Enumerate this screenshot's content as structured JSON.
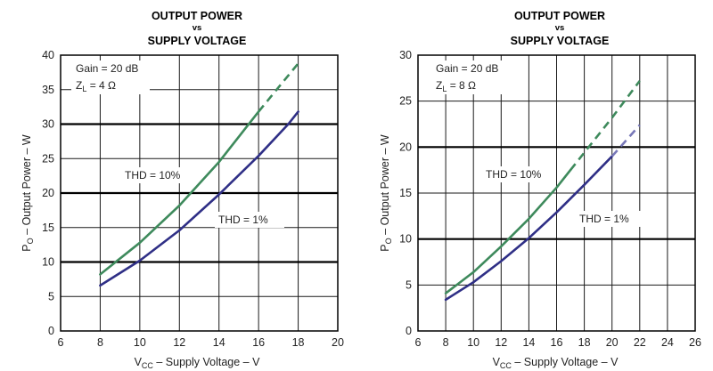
{
  "chart_data": [
    {
      "type": "line",
      "title": "OUTPUT POWER",
      "title_vs": "vs",
      "subtitle": "SUPPLY VOLTAGE",
      "xlabel_prefix": "V",
      "xlabel_sub": "CC",
      "xlabel_rest": " – Supply Voltage – V",
      "ylabel_prefix": "P",
      "ylabel_sub": "O",
      "ylabel_rest": " – Output Power – W",
      "xlim": [
        6,
        20
      ],
      "ylim": [
        0,
        40
      ],
      "x_ticks": [
        6,
        8,
        10,
        12,
        14,
        16,
        18,
        20
      ],
      "y_ticks": [
        0,
        5,
        10,
        15,
        20,
        25,
        30,
        35,
        40
      ],
      "grid": true,
      "annotation_gain": "Gain = 20 dB",
      "annotation_load_prefix": "Z",
      "annotation_load_sub": "L",
      "annotation_load_rest": " = 4 Ω",
      "series": [
        {
          "name": "THD = 10%",
          "color": "#3e8a5c",
          "dashed_from": 16,
          "points": [
            [
              8,
              8.2
            ],
            [
              10,
              12.8
            ],
            [
              12,
              18.2
            ],
            [
              14,
              24.5
            ],
            [
              16,
              31.8
            ],
            [
              18,
              38.8
            ]
          ]
        },
        {
          "name": "THD = 1%",
          "color": "#2f2f86",
          "dashed_from": 18,
          "dashed_color": "#7878b8",
          "points": [
            [
              8,
              6.6
            ],
            [
              10,
              10.2
            ],
            [
              12,
              14.6
            ],
            [
              14,
              19.8
            ],
            [
              16,
              25.4
            ],
            [
              17.5,
              30.0
            ],
            [
              18,
              31.8
            ]
          ]
        }
      ]
    },
    {
      "type": "line",
      "title": "OUTPUT POWER",
      "title_vs": "vs",
      "subtitle": "SUPPLY VOLTAGE",
      "xlabel_prefix": "V",
      "xlabel_sub": "CC",
      "xlabel_rest": " – Supply Voltage – V",
      "ylabel_prefix": "P",
      "ylabel_sub": "O",
      "ylabel_rest": " – Output Power – W",
      "xlim": [
        6,
        26
      ],
      "ylim": [
        0,
        30
      ],
      "x_ticks": [
        6,
        8,
        10,
        12,
        14,
        16,
        18,
        20,
        22,
        24,
        26
      ],
      "y_ticks": [
        0,
        5,
        10,
        15,
        20,
        25,
        30
      ],
      "grid": true,
      "annotation_gain": "Gain = 20 dB",
      "annotation_load_prefix": "Z",
      "annotation_load_sub": "L",
      "annotation_load_rest": " = 8 Ω",
      "series": [
        {
          "name": "THD = 10%",
          "color": "#3e8a5c",
          "dashed_from": 17,
          "points": [
            [
              8,
              4.1
            ],
            [
              10,
              6.4
            ],
            [
              12,
              9.2
            ],
            [
              14,
              12.2
            ],
            [
              16,
              15.6
            ],
            [
              18,
              19.4
            ],
            [
              20,
              23.2
            ],
            [
              22,
              27.2
            ]
          ]
        },
        {
          "name": "THD = 1%",
          "color": "#2f2f86",
          "dashed_from": 20,
          "dashed_color": "#7878b8",
          "points": [
            [
              8,
              3.4
            ],
            [
              10,
              5.3
            ],
            [
              12,
              7.6
            ],
            [
              14,
              10.1
            ],
            [
              16,
              12.9
            ],
            [
              18,
              15.9
            ],
            [
              20,
              19.0
            ],
            [
              22,
              22.4
            ]
          ]
        }
      ]
    }
  ]
}
